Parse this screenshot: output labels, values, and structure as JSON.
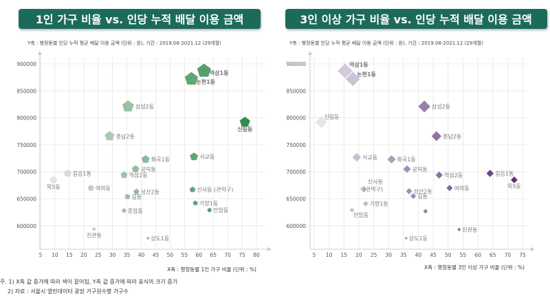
{
  "colors": {
    "banner": "#1d6b5b",
    "label_blue": "#2e2e9e",
    "label_pink": "#c8406e",
    "left_light": "#eef0ee",
    "left_dark": "#2e8b4a",
    "right_light": "#f0eef0",
    "right_dark": "#5a2a7c"
  },
  "chart_data": [
    {
      "type": "scatter",
      "marker": "pentagon",
      "title": "1인 가구 비율 vs. 인당 누적 배달 이용 금액",
      "subtitle": "Y축 : 행정동별 인당 누적 평균 배달 이용 금액 (단위 : 원), 기간 : 2019.08-2021.12 (29개월)",
      "xlabel": "X축 : 행정동별 1인 가구 비율 (단위 : %)",
      "xlim": [
        5,
        80
      ],
      "ylim": [
        560000,
        910000
      ],
      "xticks": [
        "5",
        "10",
        "15",
        "20",
        "25",
        "30",
        "35",
        "40",
        "45",
        "50",
        "55",
        "60",
        "65",
        "70",
        "75",
        "80"
      ],
      "yticks": [
        "600000",
        "650000",
        "700000",
        "750000",
        "800000",
        "850000",
        "900000"
      ],
      "grid": true,
      "points": [
        {
          "label": "역삼1동",
          "x": 61.8,
          "y": 887000,
          "highlight": "blue"
        },
        {
          "label": "논현1동",
          "x": 57.4,
          "y": 872000,
          "highlight": "blue"
        },
        {
          "label": "삼성2동",
          "x": 35.4,
          "y": 821000
        },
        {
          "label": "신림동",
          "x": 76.0,
          "y": 792000,
          "highlight": "blue"
        },
        {
          "label": "풍납2동",
          "x": 29.0,
          "y": 766000
        },
        {
          "label": "화곡1동",
          "x": 41.5,
          "y": 723000
        },
        {
          "label": "서교동",
          "x": 58.3,
          "y": 728000
        },
        {
          "label": "공덕동",
          "x": 38.0,
          "y": 705000
        },
        {
          "label": "길음1동",
          "x": 14.4,
          "y": 697000,
          "highlight": "pink"
        },
        {
          "label": "역삼2동",
          "x": 34.0,
          "y": 694000
        },
        {
          "label": "목5동",
          "x": 9.5,
          "y": 685000,
          "highlight": "pink"
        },
        {
          "label": "여의동",
          "x": 22.5,
          "y": 670000
        },
        {
          "label": "신사동 (관악구)",
          "x": 57.8,
          "y": 667000
        },
        {
          "label": "성산2동",
          "x": 38.3,
          "y": 663000
        },
        {
          "label": "길동",
          "x": 35.2,
          "y": 654000
        },
        {
          "label": "가양1동",
          "x": 58.8,
          "y": 642000
        },
        {
          "label": "안암동",
          "x": 63.7,
          "y": 629000
        },
        {
          "label": "종암동",
          "x": 34.0,
          "y": 628000
        },
        {
          "label": "진관동",
          "x": 23.6,
          "y": 594000
        },
        {
          "label": "상도1동",
          "x": 42.3,
          "y": 577000
        }
      ]
    },
    {
      "type": "scatter",
      "marker": "diamond",
      "title": "3인 이상 가구 비율 vs. 인당 누적 배달 이용 금액",
      "subtitle": "Y축 : 행정동별 인당 누적 평균 배달 이용 금액 (단위 : 원), 기간 : 2019.08-2021.12 (29개월)",
      "xlabel": "X축 : 행정동별 3인 이상 가구 비율 (단위 : %)",
      "xlim": [
        5,
        75
      ],
      "ylim": [
        560000,
        910000
      ],
      "xticks": [
        "5",
        "10",
        "15",
        "20",
        "25",
        "30",
        "35",
        "40",
        "45",
        "50",
        "55",
        "60",
        "65",
        "70",
        "75"
      ],
      "yticks": [
        "600000",
        "650000",
        "700000",
        "750000",
        "800000",
        "850000",
        "900000"
      ],
      "grid": true,
      "points": [
        {
          "label": "역삼1동",
          "x": 15.4,
          "y": 887000,
          "highlight": "blue"
        },
        {
          "label": "논현1동",
          "x": 18.0,
          "y": 872000,
          "highlight": "blue"
        },
        {
          "label": "신림동",
          "x": 7.4,
          "y": 792000
        },
        {
          "label": "삼성2동",
          "x": 42.0,
          "y": 821000
        },
        {
          "label": "풍납2동",
          "x": 46.1,
          "y": 766000
        },
        {
          "label": "서교동",
          "x": 19.3,
          "y": 727000
        },
        {
          "label": "화곡1동",
          "x": 31.0,
          "y": 723000
        },
        {
          "label": "공덕동",
          "x": 36.2,
          "y": 705000
        },
        {
          "label": "역삼2동",
          "x": 47.0,
          "y": 694000
        },
        {
          "label": "길음1동",
          "x": 64.1,
          "y": 697000,
          "highlight": "pink"
        },
        {
          "label": "목5동",
          "x": 72.2,
          "y": 685000,
          "highlight": "pink"
        },
        {
          "label": "신사동 (관악구)",
          "x": 21.6,
          "y": 668000
        },
        {
          "label": "여의동",
          "x": 50.5,
          "y": 670000
        },
        {
          "label": "성산2동",
          "x": 36.9,
          "y": 664000
        },
        {
          "label": "길동",
          "x": 38.3,
          "y": 655000
        },
        {
          "label": "가양1동",
          "x": 22.3,
          "y": 641000
        },
        {
          "label": "안암동",
          "x": 17.7,
          "y": 629000
        },
        {
          "label": "",
          "x": 42.4,
          "y": 627000
        },
        {
          "label": "진관동",
          "x": 53.7,
          "y": 593000
        },
        {
          "label": "상도1동",
          "x": 35.9,
          "y": 577000
        }
      ]
    }
  ],
  "footnote": {
    "line1": "주. 1) X축 값 증가에 따라 색이 짙어짐, Y축 값 증가에 따라 표식의 크기 증가",
    "line2": "2) 자료 : 서울시 열린데이터 광장 가구원수별 가구수"
  }
}
